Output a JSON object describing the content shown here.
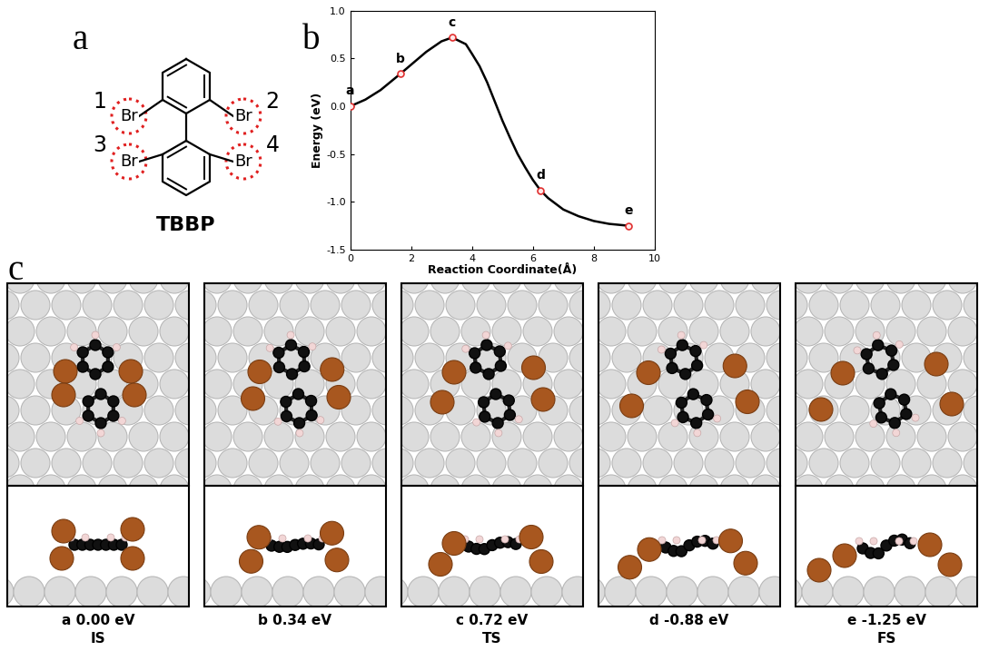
{
  "panel_labels": [
    "a",
    "b",
    "c"
  ],
  "molecule": {
    "name": "TBBP",
    "atom_label": "Br",
    "site_numbers": [
      1,
      2,
      3,
      4
    ]
  },
  "chart_data": {
    "type": "line",
    "x_label": "Reaction Coordinate(Å)",
    "y_label": "Energy (eV)",
    "xlim": [
      0,
      10
    ],
    "ylim": [
      -1.5,
      1.0
    ],
    "xticks": [
      0,
      2,
      4,
      6,
      8,
      10
    ],
    "yticks": [
      {
        "value": -1.5,
        "label": "-1.5"
      },
      {
        "value": -1.0,
        "label": "-1.0"
      },
      {
        "value": -0.5,
        "label": "-0.5"
      },
      {
        "value": 0.0,
        "label": "0.0"
      },
      {
        "value": 0.5,
        "label": "0.5"
      },
      {
        "value": 1.0,
        "label": "1.0"
      }
    ],
    "curve": {
      "color": "#000000",
      "line_style": "solid",
      "x": [
        0,
        0.5,
        1.0,
        1.65,
        2.5,
        3.0,
        3.35,
        3.8,
        4.0,
        4.25,
        4.5,
        4.75,
        5.0,
        5.25,
        5.5,
        5.75,
        6.0,
        6.25,
        6.5,
        7.0,
        7.5,
        8.0,
        8.5,
        9.15
      ],
      "values": [
        0,
        0.07,
        0.17,
        0.34,
        0.57,
        0.68,
        0.72,
        0.65,
        0.55,
        0.42,
        0.25,
        0.05,
        -0.15,
        -0.33,
        -0.5,
        -0.64,
        -0.77,
        -0.88,
        -0.96,
        -1.08,
        -1.15,
        -1.2,
        -1.23,
        -1.25
      ]
    },
    "points": {
      "color": "#e03030",
      "marker": "o",
      "x": [
        0,
        1.65,
        3.35,
        6.25,
        9.15
      ],
      "values": [
        0.0,
        0.34,
        0.72,
        -0.88,
        -1.25
      ],
      "labels": [
        "a",
        "b",
        "c",
        "d",
        "e"
      ]
    }
  },
  "frames": [
    {
      "caption": "a 0.00 eV",
      "state": "IS"
    },
    {
      "caption": "b 0.34 eV"
    },
    {
      "caption": "c 0.72 eV",
      "state": "TS"
    },
    {
      "caption": "d -0.88 eV"
    },
    {
      "caption": "e -1.25 eV",
      "state": "FS"
    }
  ]
}
